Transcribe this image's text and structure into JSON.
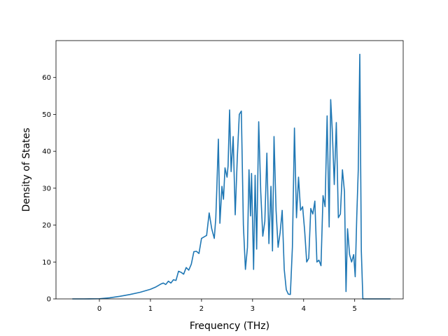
{
  "chart_data": {
    "type": "line",
    "title": "",
    "xlabel": "Frequency (THz)",
    "ylabel": "Density of States",
    "xlim": [
      -0.85,
      5.95
    ],
    "ylim": [
      0,
      70
    ],
    "xticks": [
      0,
      1,
      2,
      3,
      4,
      5
    ],
    "yticks": [
      0,
      10,
      20,
      30,
      40,
      50,
      60
    ],
    "grid": false,
    "legend": "none",
    "line_color": "#1f77b4",
    "series": [
      {
        "name": "",
        "x": [
          -0.53,
          -0.3,
          0.0,
          0.2,
          0.4,
          0.6,
          0.8,
          1.0,
          1.1,
          1.2,
          1.25,
          1.3,
          1.35,
          1.4,
          1.45,
          1.5,
          1.55,
          1.6,
          1.65,
          1.7,
          1.75,
          1.8,
          1.85,
          1.9,
          1.95,
          2.0,
          2.05,
          2.1,
          2.15,
          2.2,
          2.25,
          2.28,
          2.3,
          2.33,
          2.36,
          2.4,
          2.43,
          2.46,
          2.5,
          2.52,
          2.55,
          2.58,
          2.62,
          2.66,
          2.7,
          2.74,
          2.78,
          2.82,
          2.86,
          2.9,
          2.93,
          2.96,
          2.98,
          3.02,
          3.05,
          3.08,
          3.12,
          3.16,
          3.2,
          3.24,
          3.28,
          3.32,
          3.36,
          3.39,
          3.42,
          3.46,
          3.5,
          3.54,
          3.58,
          3.62,
          3.66,
          3.7,
          3.74,
          3.78,
          3.82,
          3.86,
          3.9,
          3.94,
          3.98,
          4.02,
          4.06,
          4.1,
          4.14,
          4.18,
          4.22,
          4.26,
          4.3,
          4.34,
          4.38,
          4.42,
          4.46,
          4.5,
          4.53,
          4.56,
          4.6,
          4.64,
          4.68,
          4.72,
          4.76,
          4.8,
          4.83,
          4.86,
          4.9,
          4.94,
          4.98,
          5.01,
          5.04,
          5.07,
          5.1,
          5.13,
          5.16,
          5.2,
          5.4,
          5.7
        ],
        "values": [
          0.0,
          0.0,
          0.05,
          0.3,
          0.7,
          1.2,
          1.8,
          2.6,
          3.2,
          4.0,
          4.3,
          3.9,
          4.8,
          4.3,
          5.2,
          5.0,
          7.5,
          7.2,
          6.7,
          8.5,
          7.8,
          9.4,
          12.8,
          12.9,
          12.3,
          16.4,
          16.8,
          17.2,
          23.3,
          19.0,
          16.4,
          22.0,
          30.0,
          43.3,
          20.5,
          30.5,
          27.0,
          35.5,
          33.0,
          36.0,
          51.2,
          34.5,
          44.0,
          22.8,
          38.0,
          50.0,
          50.9,
          20.0,
          8.0,
          14.0,
          35.0,
          22.5,
          34.0,
          8.0,
          33.5,
          13.5,
          48.0,
          29.0,
          17.0,
          21.0,
          39.5,
          15.0,
          30.5,
          13.0,
          44.0,
          24.0,
          14.0,
          18.0,
          24.0,
          8.0,
          2.5,
          1.3,
          1.2,
          14.0,
          46.3,
          22.0,
          33.0,
          24.0,
          25.0,
          18.5,
          10.0,
          11.0,
          24.5,
          23.0,
          26.5,
          10.0,
          10.5,
          9.0,
          28.0,
          25.0,
          49.6,
          19.5,
          54.0,
          46.0,
          31.0,
          47.8,
          22.0,
          23.0,
          35.0,
          29.0,
          2.0,
          19.0,
          12.0,
          10.0,
          12.0,
          6.0,
          22.0,
          35.0,
          66.3,
          13.0,
          0.0,
          0.0,
          0.0,
          0.0
        ]
      }
    ]
  }
}
